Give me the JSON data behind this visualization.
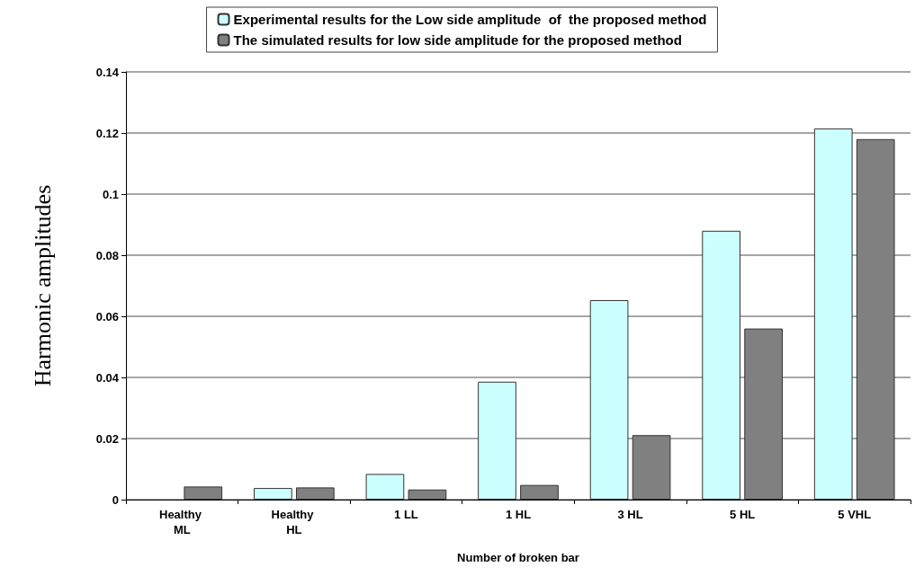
{
  "chart_data": {
    "type": "bar",
    "xlabel": "Number of broken bar",
    "ylabel": "Harmonic amplitudes",
    "categories": [
      "Healthy ML",
      "Healthy HL",
      "1 LL",
      "1 HL",
      "3 HL",
      "5 HL",
      "5 VHL"
    ],
    "series": [
      {
        "name": "Experimental results for the Low side amplitude  of  the proposed method",
        "color": "#ccffff",
        "values": [
          null,
          0.0038,
          0.0084,
          0.0386,
          0.0653,
          0.088,
          0.1215
        ]
      },
      {
        "name": "The simulated results for low side amplitude for the proposed method",
        "color": "#808080",
        "values": [
          0.0043,
          0.004,
          0.0033,
          0.0048,
          0.0211,
          0.056,
          0.118
        ]
      }
    ],
    "ylim": [
      0,
      0.14
    ],
    "yticks": [
      0,
      0.02,
      0.04,
      0.06,
      0.08,
      0.1,
      0.12,
      0.14
    ],
    "grid": "y",
    "legend": "top"
  }
}
